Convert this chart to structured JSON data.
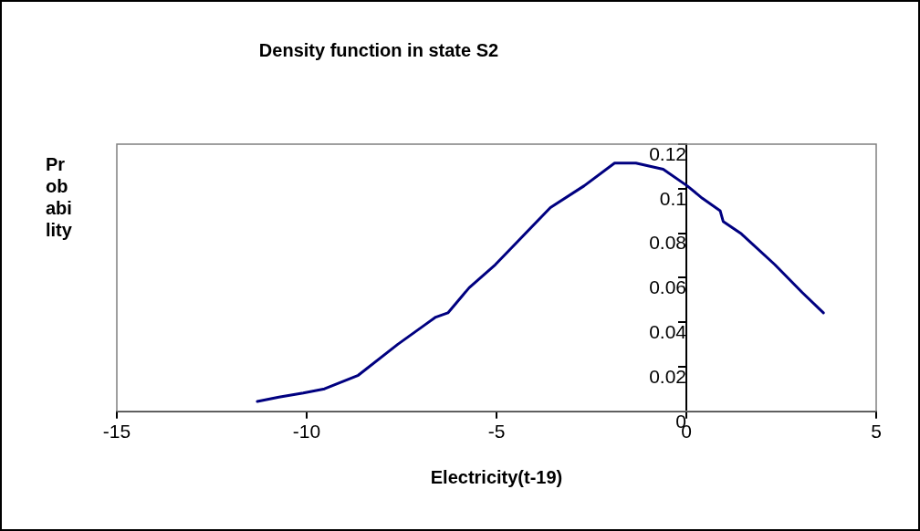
{
  "chart_data": {
    "type": "line",
    "title": "Density function in state S2",
    "xlabel": "Electricity(t-19)",
    "ylabel": "Probability",
    "x": [
      -11.3,
      -10.73,
      -10.09,
      -9.53,
      -8.64,
      -7.6,
      -6.88,
      -6.6,
      -6.28,
      -5.72,
      -5.03,
      -4.38,
      -3.58,
      -2.69,
      -1.89,
      -1.33,
      -0.61,
      0.02,
      0.42,
      0.89,
      0.97,
      1.45,
      2.33,
      3.05,
      3.61
    ],
    "series": [
      {
        "color": "#000080",
        "values": [
          0.0044,
          0.0064,
          0.0082,
          0.0101,
          0.0162,
          0.0301,
          0.0389,
          0.0423,
          0.0442,
          0.0555,
          0.0659,
          0.0774,
          0.0915,
          0.1013,
          0.1115,
          0.1115,
          0.1087,
          0.1013,
          0.0957,
          0.0901,
          0.0853,
          0.0797,
          0.0659,
          0.0534,
          0.0442
        ]
      }
    ],
    "xlim": [
      -15,
      5
    ],
    "xticks": [
      -15,
      -10,
      -5,
      0,
      5
    ],
    "ylim": [
      0,
      0.12
    ],
    "yticks": [
      0,
      0.02,
      0.04,
      0.06,
      0.08,
      0.1,
      0.12
    ],
    "grid": false,
    "legend": false,
    "marker": "none",
    "line_style": "solid"
  }
}
